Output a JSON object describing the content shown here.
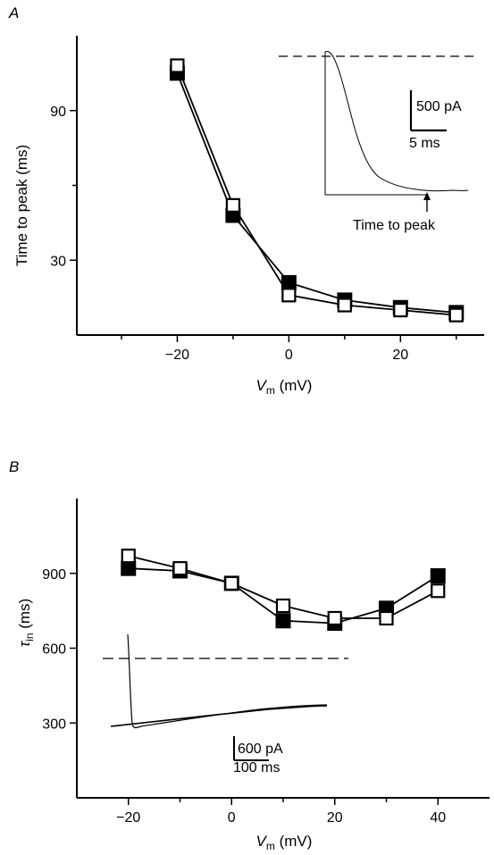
{
  "chart_data": [
    {
      "panel_label": "A",
      "type": "line",
      "xlabel": "V_m (mV)",
      "xlabel_main": "V",
      "xlabel_sub": "m",
      "xlabel_unit": " (mV)",
      "ylabel": "Time to peak (ms)",
      "xlim": [
        -38,
        35
      ],
      "ylim": [
        0,
        120
      ],
      "xticks": [
        -20,
        0,
        20
      ],
      "xtick_labels": [
        "−20",
        "0",
        "20"
      ],
      "xticks_minor": [
        -30,
        -10,
        10,
        30
      ],
      "yticks": [
        30,
        90
      ],
      "ytick_labels": [
        "30",
        "90"
      ],
      "yticks_minor": [
        60
      ],
      "series": [
        {
          "marker": "filled-square",
          "x": [
            -20,
            -10,
            0,
            10,
            20,
            30
          ],
          "y": [
            105,
            48,
            21,
            14,
            11,
            9
          ]
        },
        {
          "marker": "open-square",
          "x": [
            -20,
            -10,
            0,
            10,
            20,
            30
          ],
          "y": [
            108,
            52,
            16,
            12,
            10,
            8
          ]
        }
      ],
      "inset": {
        "scale_current": "500 pA",
        "scale_time": "5 ms",
        "annotation": "Time to peak"
      }
    },
    {
      "panel_label": "B",
      "type": "line",
      "xlabel": "V_m (mV)",
      "xlabel_main": "V",
      "xlabel_sub": "m",
      "xlabel_unit": " (mV)",
      "ylabel": "τ_in (ms)",
      "ylabel_main": "τ",
      "ylabel_sub": "in",
      "ylabel_unit": " (ms)",
      "xlim": [
        -30,
        50
      ],
      "ylim": [
        0,
        1200
      ],
      "xticks": [
        -20,
        0,
        20,
        40
      ],
      "xtick_labels": [
        "−20",
        "0",
        "20",
        "40"
      ],
      "xticks_minor": [
        -10,
        10,
        30
      ],
      "yticks": [
        300,
        600,
        900
      ],
      "ytick_labels": [
        "300",
        "600",
        "900"
      ],
      "series": [
        {
          "marker": "filled-square",
          "x": [
            -20,
            -10,
            0,
            10,
            20,
            30,
            40
          ],
          "y": [
            920,
            910,
            860,
            710,
            700,
            760,
            890
          ]
        },
        {
          "marker": "open-square",
          "x": [
            -20,
            -10,
            0,
            10,
            20,
            30,
            40
          ],
          "y": [
            970,
            920,
            860,
            770,
            720,
            720,
            830
          ]
        }
      ],
      "inset": {
        "scale_current": "600 pA",
        "scale_time": "100 ms"
      }
    }
  ]
}
